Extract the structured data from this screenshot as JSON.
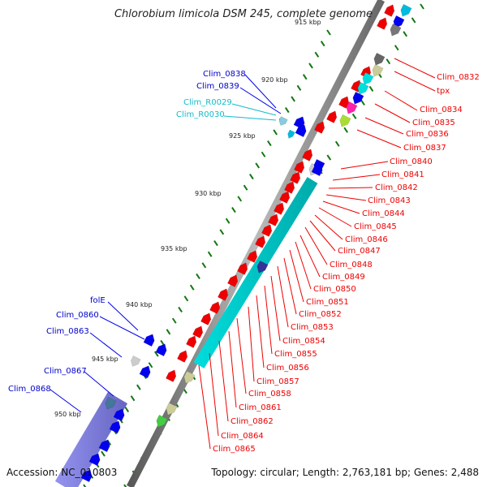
{
  "title": "Chlorobium limicola DSM 245, complete genome",
  "footer": {
    "accession": "Accession: NC_010803",
    "stats": "Topology: circular; Length: 2,763,181 bp; Genes: 2,488"
  },
  "kbp_labels": [
    "915 kbp",
    "920 kbp",
    "925 kbp",
    "930 kbp",
    "935 kbp",
    "940 kbp",
    "945 kbp",
    "950 kbp"
  ],
  "red_labels": [
    "Clim_0832",
    "tpx",
    "Clim_0834",
    "Clim_0835",
    "Clim_0836",
    "Clim_0837",
    "Clim_0840",
    "Clim_0841",
    "Clim_0842",
    "Clim_0843",
    "Clim_0844",
    "Clim_0845",
    "Clim_0846",
    "Clim_0847",
    "Clim_0848",
    "Clim_0849",
    "Clim_0850",
    "Clim_0851",
    "Clim_0852",
    "Clim_0853",
    "Clim_0854",
    "Clim_0855",
    "Clim_0856",
    "Clim_0857",
    "Clim_0858",
    "Clim_0861",
    "Clim_0862",
    "Clim_0864",
    "Clim_0865"
  ],
  "blue_labels": [
    "Clim_0838",
    "Clim_0839",
    "folE",
    "Clim_0860",
    "Clim_0863",
    "Clim_0867",
    "Clim_0868"
  ],
  "cyan_labels": [
    "Clim_R0029",
    "Clim_R0030"
  ],
  "colors": {
    "forward_gene": "#ee0000",
    "reverse_gene": "#0000ee",
    "rna": "#11bbcc",
    "backbone": "#888888",
    "tick": "#117711"
  }
}
